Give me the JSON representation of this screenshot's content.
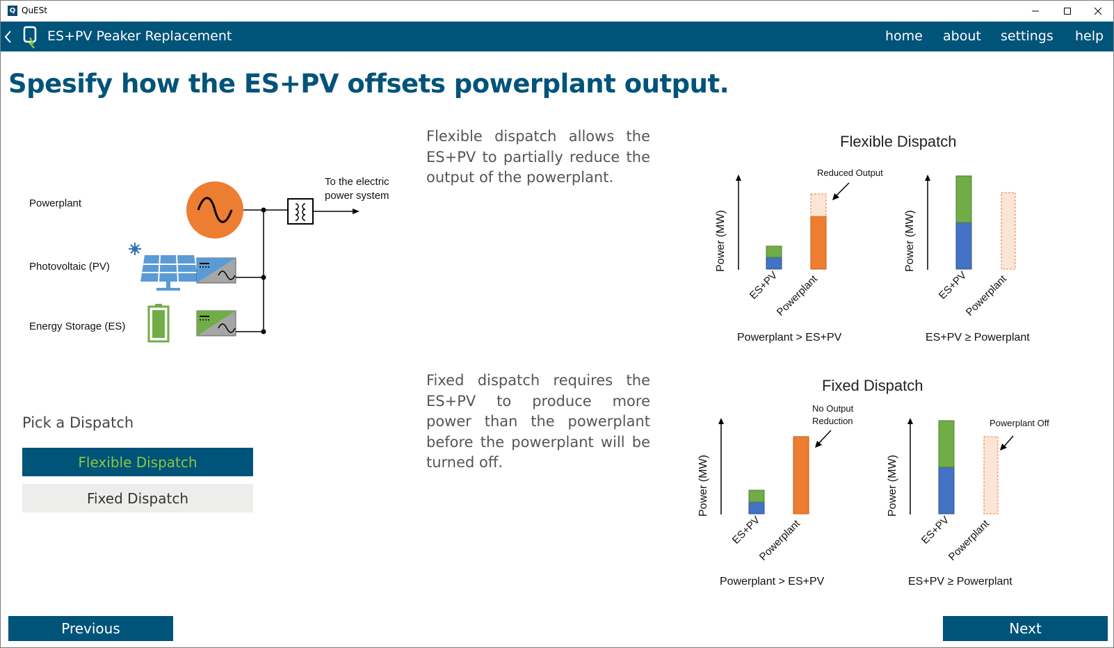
{
  "window": {
    "app_title": "QuESt",
    "app_icon_letter": "Q"
  },
  "nav": {
    "title": "ES+PV Peaker Replacement",
    "links": [
      "home",
      "about",
      "settings",
      "help"
    ]
  },
  "heading": "Spesify how the ES+PV offsets powerplant output.",
  "diagram": {
    "labels": {
      "powerplant": "Powerplant",
      "pv": "Photovoltaic (PV)",
      "es": "Energy Storage (ES)"
    },
    "grid_line1": "To the electric",
    "grid_line2": "power system"
  },
  "descriptions": {
    "flexible": "Flexible dispatch allows the ES+PV to partially reduce the output of the powerplant.",
    "fixed": "Fixed dispatch requires the ES+PV to produce more power than the powerplant before the powerplant will be turned off."
  },
  "pick": {
    "label": "Pick a Dispatch",
    "options": [
      "Flexible Dispatch",
      "Fixed Dispatch"
    ],
    "selected": "Flexible Dispatch"
  },
  "graphs": {
    "flexible": {
      "title": "Flexible Dispatch",
      "y_label": "Power (MW)",
      "left": {
        "cats": [
          "ES+PV",
          "Powerplant"
        ],
        "caption": "Powerplant > ES+PV",
        "annotation": "Reduced Output"
      },
      "right": {
        "cats": [
          "ES+PV",
          "Powerplant"
        ],
        "caption": "ES+PV ≥ Powerplant"
      }
    },
    "fixed": {
      "title": "Fixed Dispatch",
      "y_label": "Power (MW)",
      "left": {
        "cats": [
          "ES+PV",
          "Powerplant"
        ],
        "caption": "Powerplant > ES+PV",
        "annotation_line1": "No Output",
        "annotation_line2": "Reduction"
      },
      "right": {
        "cats": [
          "ES+PV",
          "Powerplant"
        ],
        "caption": "ES+PV ≥ Powerplant",
        "annotation": "Powerplant Off"
      }
    }
  },
  "colors": {
    "primary": "#005379",
    "accent_green": "#8cc63f",
    "orange": "#ed7d31",
    "blue": "#4472c4",
    "green": "#70ad47",
    "light_orange": "#fbe5d6"
  },
  "footer": {
    "previous": "Previous",
    "next": "Next"
  }
}
